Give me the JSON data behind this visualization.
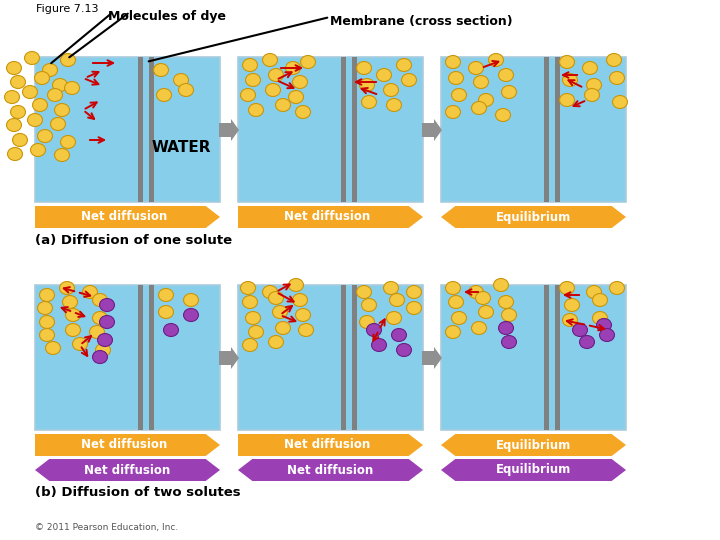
{
  "title": "Figure 7.13",
  "box_bg": "#87CEEB",
  "orange_color": "#F5A623",
  "purple_color": "#9B3FB5",
  "red_arrow": "#CC0000",
  "purple_arrow_color": "#CC44CC",
  "gray_color": "#909090",
  "membrane_color": "#808080",
  "dye_orange": "#F5C842",
  "dye_orange_edge": "#C8960A",
  "dye_purple": "#9B3FB5",
  "dye_purple_edge": "#6B1F85",
  "water_text": "WATER",
  "label_a": "(a) Diffusion of one solute",
  "label_b": "(b) Diffusion of two solutes",
  "copyright": "© 2011 Pearson Education, Inc.",
  "fig_label": "Figure 7.13",
  "mol_label": "Molecules of dye",
  "mem_label": "Membrane (cross section)"
}
